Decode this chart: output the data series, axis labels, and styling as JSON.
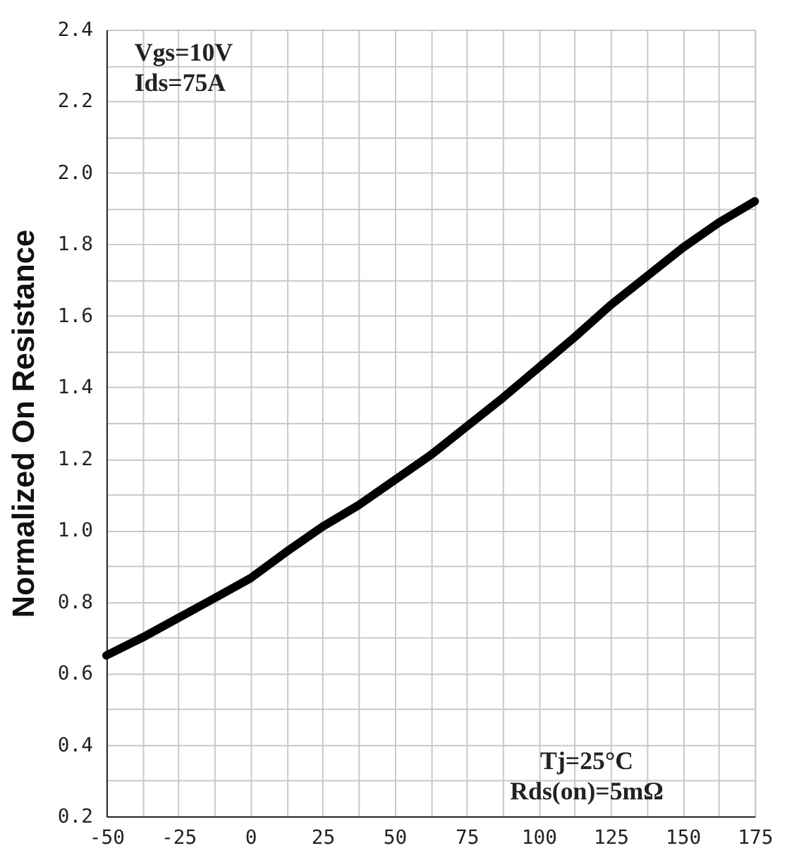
{
  "chart_data": {
    "type": "line",
    "ylabel": "Normalized On Resistance",
    "x": [
      -50,
      -37.5,
      -25,
      -12.5,
      0,
      12.5,
      25,
      37.5,
      50,
      62.5,
      75,
      87.5,
      100,
      112.5,
      125,
      137.5,
      150,
      162.5,
      175
    ],
    "series": [
      {
        "color": "#000000",
        "values": [
          0.65,
          0.7,
          0.755,
          0.81,
          0.866,
          0.94,
          1.01,
          1.07,
          1.14,
          1.21,
          1.29,
          1.37,
          1.455,
          1.54,
          1.63,
          1.71,
          1.79,
          1.86,
          1.92
        ]
      }
    ],
    "xlim": [
      -50,
      175
    ],
    "xticks": [
      -50,
      {
        "value": -37.5,
        "label": null
      },
      -25,
      {
        "value": -12.5,
        "label": null
      },
      0,
      {
        "value": 12.5,
        "label": null
      },
      25,
      {
        "value": 37.5,
        "label": null
      },
      50,
      {
        "value": 62.5,
        "label": null
      },
      75,
      {
        "value": 87.5,
        "label": null
      },
      100,
      {
        "value": 112.5,
        "label": null
      },
      125,
      {
        "value": 137.5,
        "label": null
      },
      150,
      {
        "value": 162.5,
        "label": null
      },
      175
    ],
    "ylim": [
      0.2,
      2.4
    ],
    "yticks": [
      {
        "value": 0.2,
        "label": "0.2"
      },
      {
        "value": 0.3,
        "label": null
      },
      {
        "value": 0.4,
        "label": "0.4"
      },
      {
        "value": 0.5,
        "label": null
      },
      {
        "value": 0.6,
        "label": "0.6"
      },
      {
        "value": 0.7,
        "label": null
      },
      {
        "value": 0.8,
        "label": "0.8"
      },
      {
        "value": 0.9,
        "label": null
      },
      {
        "value": 1.0,
        "label": "1.0"
      },
      {
        "value": 1.1,
        "label": null
      },
      {
        "value": 1.2,
        "label": "1.2"
      },
      {
        "value": 1.3,
        "label": null
      },
      {
        "value": 1.4,
        "label": "1.4"
      },
      {
        "value": 1.5,
        "label": null
      },
      {
        "value": 1.6,
        "label": "1.6"
      },
      {
        "value": 1.7,
        "label": null
      },
      {
        "value": 1.8,
        "label": "1.8"
      },
      {
        "value": 1.9,
        "label": null
      },
      {
        "value": 2.0,
        "label": "2.0"
      },
      {
        "value": 2.1,
        "label": null
      },
      {
        "value": 2.2,
        "label": "2.2"
      },
      {
        "value": 2.3,
        "label": null
      },
      {
        "value": 2.4,
        "label": "2.4"
      }
    ],
    "grid": true,
    "marker": "none",
    "line_style": "solid",
    "annotations": [
      "Vgs=10V\nIds=75A",
      "Tj=25°C\nRds(on)=5mΩ"
    ]
  }
}
